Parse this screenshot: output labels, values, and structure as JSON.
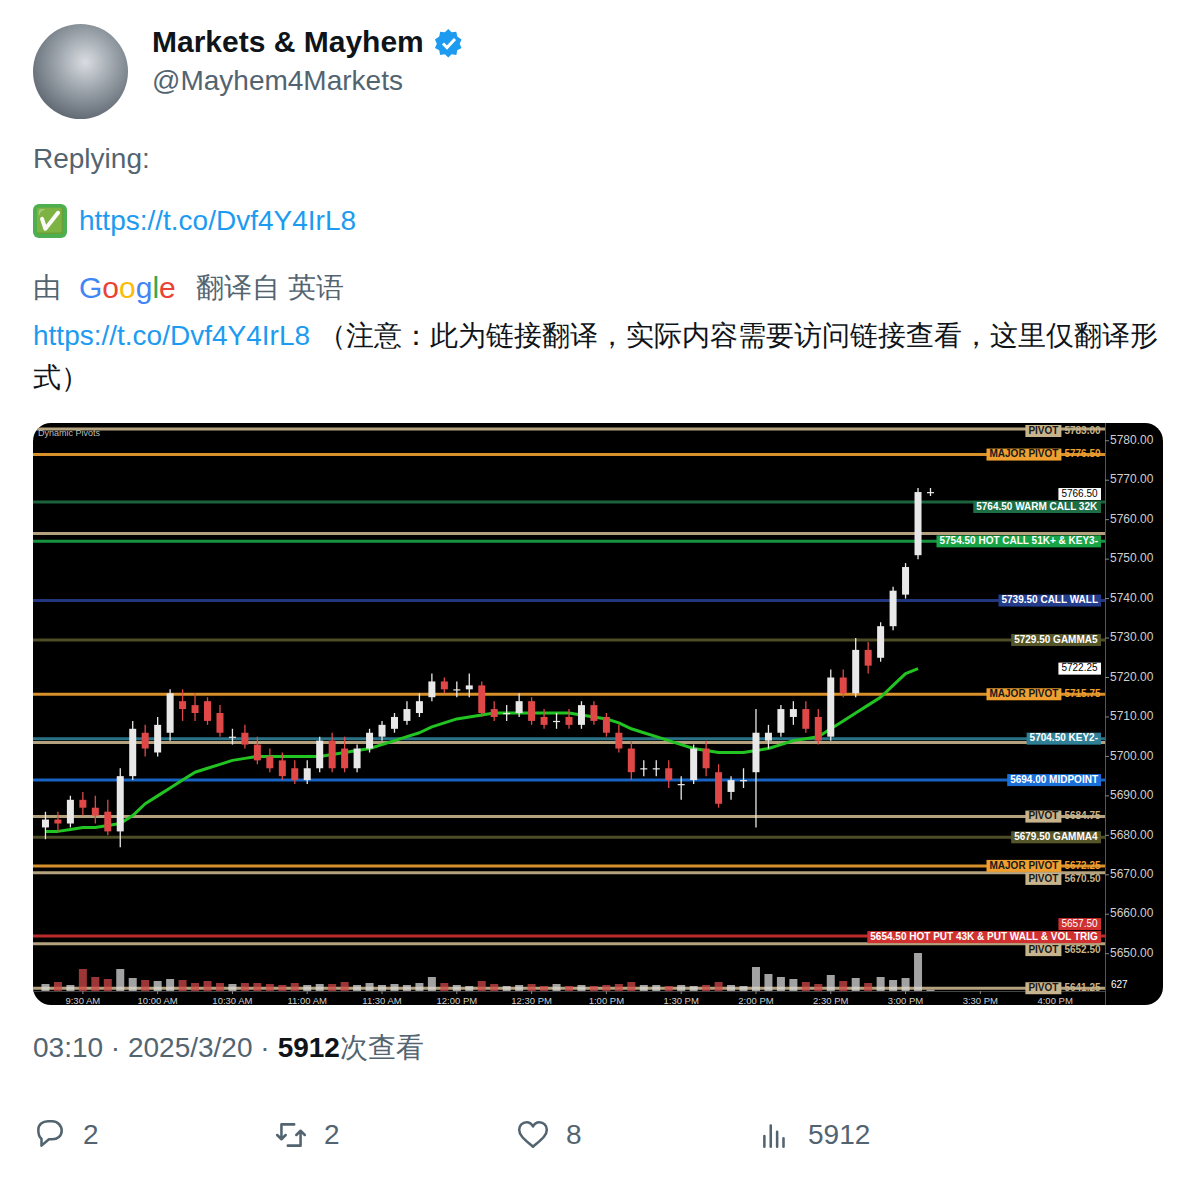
{
  "tweet": {
    "name": "Markets & Mayhem",
    "handle": "@Mayhem4Markets",
    "reply_label": "Replying:",
    "body_prefix": "✅",
    "body_link": "https://t.co/Dvf4Y4IrL8",
    "translation_by": "由",
    "translation_brand": "Google",
    "translation_from": "翻译自 英语",
    "translated_link": "https://t.co/Dvf4Y4IrL8",
    "translated_note": "（注意：此为链接翻译，实际内容需要访问链接查看，这里仅翻译形式）",
    "timestamp": "03:10 · 2025/3/20 ·",
    "views": 5912,
    "views_label": "次查看",
    "stats": {
      "replies": 2,
      "reposts": 2,
      "likes": 8,
      "views": 5912
    }
  },
  "chart_data": {
    "type": "candlestick",
    "title": "Dynamic Pivots",
    "grid": false,
    "xlim": [
      550,
      980
    ],
    "xticks": [
      {
        "value": 570,
        "label": "9:30 AM"
      },
      {
        "value": 600,
        "label": "10:00 AM"
      },
      {
        "value": 630,
        "label": "10:30 AM"
      },
      {
        "value": 660,
        "label": "11:00 AM"
      },
      {
        "value": 690,
        "label": "11:30 AM"
      },
      {
        "value": 720,
        "label": "12:00 PM"
      },
      {
        "value": 750,
        "label": "12:30 PM"
      },
      {
        "value": 780,
        "label": "1:00 PM"
      },
      {
        "value": 810,
        "label": "1:30 PM"
      },
      {
        "value": 840,
        "label": "2:00 PM"
      },
      {
        "value": 870,
        "label": "2:30 PM"
      },
      {
        "value": 900,
        "label": "3:00 PM"
      },
      {
        "value": 930,
        "label": "3:30 PM"
      },
      {
        "value": 960,
        "label": "4:00 PM"
      }
    ],
    "ylim": [
      5637,
      5784.5
    ],
    "yticks": [
      {
        "value": 5650,
        "label": "5650.00"
      },
      {
        "value": 5660,
        "label": "5660.00"
      },
      {
        "value": 5670,
        "label": "5670.00"
      },
      {
        "value": 5680,
        "label": "5680.00"
      },
      {
        "value": 5690,
        "label": "5690.00"
      },
      {
        "value": 5700,
        "label": "5700.00"
      },
      {
        "value": 5710,
        "label": "5710.00"
      },
      {
        "value": 5720,
        "label": "5720.00"
      },
      {
        "value": 5730,
        "label": "5730.00"
      },
      {
        "value": 5740,
        "label": "5740.00"
      },
      {
        "value": 5750,
        "label": "5750.00"
      },
      {
        "value": 5760,
        "label": "5760.00"
      },
      {
        "value": 5770,
        "label": "5770.00"
      },
      {
        "value": 5780,
        "label": "5780.00"
      }
    ],
    "x": [
      555,
      560,
      565,
      570,
      575,
      580,
      585,
      590,
      595,
      600,
      605,
      610,
      615,
      620,
      625,
      630,
      635,
      640,
      645,
      650,
      655,
      660,
      665,
      670,
      675,
      680,
      685,
      690,
      695,
      700,
      705,
      710,
      715,
      720,
      725,
      730,
      735,
      740,
      745,
      750,
      755,
      760,
      765,
      770,
      775,
      780,
      785,
      790,
      795,
      800,
      805,
      810,
      815,
      820,
      825,
      830,
      835,
      840,
      845,
      850,
      855,
      860,
      865,
      870,
      875,
      880,
      885,
      890,
      895,
      900,
      905,
      910
    ],
    "open": [
      5682,
      5684,
      5683,
      5689,
      5687,
      5686,
      5681,
      5695,
      5706,
      5701,
      5706,
      5714,
      5713,
      5714,
      5711,
      5705,
      5706,
      5703,
      5700,
      5699,
      5697,
      5694,
      5697,
      5704,
      5702,
      5697,
      5702,
      5705,
      5707,
      5709,
      5711,
      5715,
      5719,
      5717,
      5717,
      5718,
      5712,
      5711,
      5711,
      5714,
      5710,
      5709,
      5710,
      5708,
      5713,
      5710,
      5706,
      5702,
      5697,
      5697,
      5697,
      5693,
      5694,
      5702,
      5696,
      5691,
      5694,
      5696,
      5704,
      5706,
      5710,
      5712,
      5710,
      5705,
      5720,
      5716,
      5727,
      5725,
      5733,
      5741,
      5751,
      5767
    ],
    "high": [
      5686,
      5686,
      5690,
      5691,
      5690,
      5689,
      5697,
      5709,
      5708,
      5710,
      5717,
      5717,
      5716,
      5715,
      5713,
      5707,
      5708,
      5705,
      5702,
      5701,
      5699,
      5699,
      5705,
      5706,
      5705,
      5703,
      5707,
      5709,
      5711,
      5714,
      5716,
      5721,
      5720,
      5719,
      5721,
      5719,
      5714,
      5713,
      5716,
      5715,
      5712,
      5711,
      5712,
      5714,
      5714,
      5711,
      5708,
      5704,
      5699,
      5699,
      5699,
      5695,
      5703,
      5704,
      5698,
      5695,
      5697,
      5712,
      5708,
      5713,
      5714,
      5714,
      5712,
      5722,
      5722,
      5730,
      5729,
      5734,
      5743,
      5749,
      5768,
      5768
    ],
    "low": [
      5679,
      5681,
      5682,
      5685,
      5683,
      5680,
      5677,
      5694,
      5700,
      5700,
      5704,
      5709,
      5709,
      5708,
      5705,
      5703,
      5702,
      5698,
      5696,
      5694,
      5693,
      5693,
      5696,
      5696,
      5696,
      5696,
      5701,
      5704,
      5706,
      5708,
      5710,
      5714,
      5716,
      5715,
      5715,
      5710,
      5709,
      5709,
      5710,
      5708,
      5707,
      5707,
      5707,
      5707,
      5708,
      5705,
      5701,
      5694,
      5695,
      5695,
      5692,
      5689,
      5693,
      5695,
      5687,
      5689,
      5692,
      5682,
      5702,
      5705,
      5708,
      5706,
      5703,
      5704,
      5715,
      5715,
      5721,
      5724,
      5732,
      5740,
      5750,
      5766
    ],
    "close": [
      5684,
      5683,
      5689,
      5687,
      5685,
      5681,
      5695,
      5707,
      5702,
      5708,
      5716,
      5712,
      5711,
      5709,
      5706,
      5705,
      5703,
      5699,
      5697,
      5695,
      5694,
      5697,
      5704,
      5697,
      5697,
      5702,
      5706,
      5708,
      5710,
      5712,
      5714,
      5719,
      5717,
      5717,
      5718,
      5711,
      5710,
      5711,
      5714,
      5709,
      5708,
      5709,
      5708,
      5713,
      5709,
      5706,
      5702,
      5696,
      5697,
      5697,
      5694,
      5693,
      5702,
      5697,
      5688,
      5694,
      5694,
      5706,
      5706,
      5712,
      5712,
      5707,
      5704,
      5720,
      5716,
      5727,
      5723,
      5733,
      5742,
      5748,
      5767,
      5767
    ],
    "volume": [
      3500,
      4500,
      3000,
      11000,
      7000,
      6000,
      11000,
      6500,
      5500,
      5000,
      6000,
      5500,
      4000,
      5000,
      4000,
      3500,
      4000,
      4000,
      3500,
      3000,
      4000,
      3000,
      3500,
      3500,
      4500,
      3000,
      4000,
      3000,
      3500,
      3000,
      4000,
      7000,
      4000,
      3000,
      2500,
      5000,
      3500,
      2500,
      3000,
      3500,
      2500,
      3500,
      2500,
      3000,
      2500,
      3000,
      3500,
      4500,
      3000,
      3000,
      2500,
      3000,
      2500,
      3000,
      4500,
      3000,
      2500,
      12000,
      8500,
      7000,
      6000,
      4500,
      3500,
      8000,
      5000,
      6500,
      4000,
      7000,
      5500,
      6500,
      19000,
      627
    ],
    "volume_lim": [
      0,
      25000
    ],
    "moving_average": {
      "color": "#22c422",
      "values": [
        5681,
        5681,
        5681.5,
        5682,
        5682,
        5682.5,
        5683,
        5685,
        5688,
        5690,
        5692,
        5694,
        5696,
        5697,
        5698,
        5699,
        5699.5,
        5700,
        5700,
        5700,
        5700,
        5700,
        5700,
        5700.5,
        5701,
        5701.5,
        5702,
        5703,
        5704,
        5705,
        5706,
        5707.5,
        5708.5,
        5709.5,
        5710,
        5710.5,
        5711,
        5711,
        5711,
        5711,
        5711,
        5711,
        5711,
        5710.5,
        5710,
        5709.5,
        5708.5,
        5707,
        5706,
        5705,
        5704,
        5703,
        5702,
        5701.5,
        5701,
        5701,
        5701,
        5701.5,
        5702,
        5703,
        5704,
        5704.5,
        5705,
        5707,
        5709,
        5711,
        5713,
        5715,
        5718,
        5721,
        5722.25,
        null
      ]
    },
    "levels": [
      {
        "value": 5783,
        "label": "PIVOT",
        "value_label": "5783.00",
        "color": "#c8b48c"
      },
      {
        "value": 5776.5,
        "label": "MAJOR PIVOT",
        "value_label": "5776.50",
        "color": "#f0a030"
      },
      {
        "value": 5764.5,
        "label": "5764.50 WARM CALL 32K",
        "color": "#1d6e44"
      },
      {
        "value": 5756.5,
        "color": "#c8b48c"
      },
      {
        "value": 5754.5,
        "label": "5754.50 HOT CALL 51K+ & KEY3-",
        "color": "#19a347"
      },
      {
        "value": 5739.5,
        "label": "5739.50 CALL WALL",
        "color": "#243c8c"
      },
      {
        "value": 5729.5,
        "label": "5729.50 GAMMA5",
        "color": "#55552a"
      },
      {
        "value": 5715.75,
        "label": "MAJOR PIVOT",
        "value_label": "5715.75",
        "color": "#f0a030"
      },
      {
        "value": 5703.5,
        "color": "#c8b48c"
      },
      {
        "value": 5704.5,
        "label": "5704.50 KEY2-",
        "color": "#2f7f96"
      },
      {
        "value": 5694,
        "label": "5694.00 MIDPOINT",
        "color": "#1a6fd8"
      },
      {
        "value": 5684.75,
        "label": "PIVOT",
        "value_label": "5684.75",
        "color": "#c8b48c"
      },
      {
        "value": 5679.5,
        "label": "5679.50 GAMMA4",
        "color": "#55552a"
      },
      {
        "value": 5672.25,
        "label": "MAJOR PIVOT",
        "value_label": "5672.25",
        "color": "#f0a030"
      },
      {
        "value": 5670.5,
        "label": "PIVOT",
        "value_label": "5670.50",
        "color": "#c8b48c"
      },
      {
        "value": 5654.5,
        "label": "5654.50 HOT PUT 43K & PUT WALL & VOL TRIG",
        "color": "#d03030"
      },
      {
        "value": 5652.5,
        "label": "PIVOT",
        "value_label": "5652.50",
        "color": "#c8b48c"
      },
      {
        "value": 5641.25,
        "label": "PIVOT",
        "value_label": "5641.25",
        "color": "#c8b48c"
      }
    ],
    "price_tags": [
      {
        "value": 5766.5,
        "label": "5766.50",
        "color": "#ffffff"
      },
      {
        "value": 5722.25,
        "label": "5722.25",
        "color": "#ffffff"
      },
      {
        "value": 5657.5,
        "label": "5657.50",
        "color": "#d03030"
      }
    ]
  }
}
